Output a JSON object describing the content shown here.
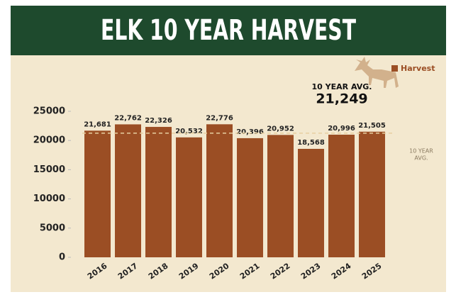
{
  "chart_data": {
    "type": "bar",
    "title": "ELK 10 YEAR HARVEST",
    "categories": [
      "2016",
      "2017",
      "2018",
      "2019",
      "2020",
      "2021",
      "2022",
      "2023",
      "2024",
      "2025"
    ],
    "series": [
      {
        "name": "Harvest",
        "color": "#9b4e24",
        "values": [
          21681,
          22762,
          22326,
          20532,
          22776,
          20396,
          20952,
          18568,
          20996,
          21505
        ],
        "value_labels": [
          "21,681",
          "22,762",
          "22,326",
          "20,532",
          "22,776",
          "20,396",
          "20,952",
          "18,568",
          "20,996",
          "21,505"
        ]
      }
    ],
    "average": {
      "value": 21249,
      "label": "21,249",
      "title": "10 YEAR AVG.",
      "side_label_lines": [
        "10 YEAR",
        "AVG."
      ]
    },
    "ylim": [
      0,
      25000
    ],
    "yticks": [
      0,
      5000,
      10000,
      15000,
      20000,
      25000
    ],
    "legend": "upper right"
  }
}
